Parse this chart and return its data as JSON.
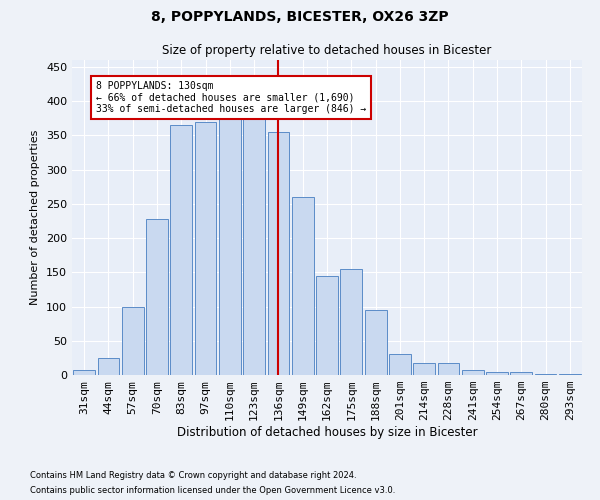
{
  "title": "8, POPPYLANDS, BICESTER, OX26 3ZP",
  "subtitle": "Size of property relative to detached houses in Bicester",
  "xlabel": "Distribution of detached houses by size in Bicester",
  "ylabel": "Number of detached properties",
  "categories": [
    "31sqm",
    "44sqm",
    "57sqm",
    "70sqm",
    "83sqm",
    "97sqm",
    "110sqm",
    "123sqm",
    "136sqm",
    "149sqm",
    "162sqm",
    "175sqm",
    "188sqm",
    "201sqm",
    "214sqm",
    "228sqm",
    "241sqm",
    "254sqm",
    "267sqm",
    "280sqm",
    "293sqm"
  ],
  "bar_heights": [
    8,
    25,
    100,
    228,
    365,
    370,
    375,
    375,
    355,
    260,
    145,
    155,
    95,
    30,
    18,
    18,
    8,
    4,
    4,
    2,
    2
  ],
  "bar_color": "#c9d9f0",
  "bar_edge_color": "#5b8cc8",
  "vline_x_index": 8,
  "vline_color": "#cc0000",
  "annotation_text": "8 POPPYLANDS: 130sqm\n← 66% of detached houses are smaller (1,690)\n33% of semi-detached houses are larger (846) →",
  "annotation_box_color": "#ffffff",
  "annotation_box_edge_color": "#cc0000",
  "ylim": [
    0,
    460
  ],
  "yticks": [
    0,
    50,
    100,
    150,
    200,
    250,
    300,
    350,
    400,
    450
  ],
  "bg_color": "#e8eef8",
  "grid_color": "#ffffff",
  "fig_bg_color": "#eef2f8",
  "footer_line1": "Contains HM Land Registry data © Crown copyright and database right 2024.",
  "footer_line2": "Contains public sector information licensed under the Open Government Licence v3.0."
}
